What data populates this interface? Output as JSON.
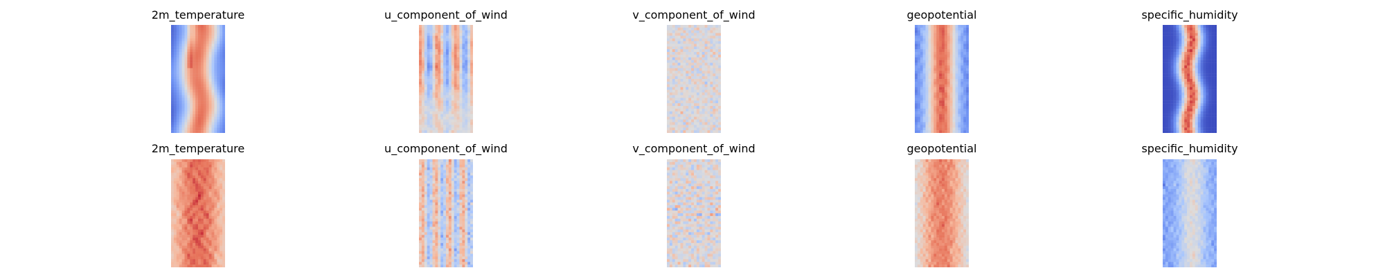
{
  "chart_data": {
    "type": "heatmap",
    "colormap": "coolwarm",
    "colormap_stops": [
      "#3b4cc0",
      "#6f92f3",
      "#aac7fd",
      "#dddcdc",
      "#f7b89c",
      "#e7745b",
      "#b40426"
    ],
    "grid": false,
    "axes_visible": false,
    "layout": {
      "rows": 2,
      "columns": 5
    },
    "panels": [
      {
        "row": 0,
        "col": 0,
        "title": "2m_temperature",
        "pattern": "temperature",
        "seed": 11
      },
      {
        "row": 0,
        "col": 1,
        "title": "u_component_of_wind",
        "pattern": "u_wind",
        "seed": 23
      },
      {
        "row": 0,
        "col": 2,
        "title": "v_component_of_wind",
        "pattern": "v_wind",
        "seed": 37
      },
      {
        "row": 0,
        "col": 3,
        "title": "geopotential",
        "pattern": "geopotential",
        "seed": 41
      },
      {
        "row": 0,
        "col": 4,
        "title": "specific_humidity",
        "pattern": "humidity",
        "seed": 53
      },
      {
        "row": 1,
        "col": 0,
        "title": "2m_temperature",
        "pattern": "temperature_noisy",
        "seed": 61
      },
      {
        "row": 1,
        "col": 1,
        "title": "u_component_of_wind",
        "pattern": "u_wind_noisy",
        "seed": 73
      },
      {
        "row": 1,
        "col": 2,
        "title": "v_component_of_wind",
        "pattern": "v_wind_noisy",
        "seed": 89
      },
      {
        "row": 1,
        "col": 3,
        "title": "geopotential",
        "pattern": "geopotential_noisy",
        "seed": 97
      },
      {
        "row": 1,
        "col": 4,
        "title": "specific_humidity",
        "pattern": "humidity_noisy",
        "seed": 101
      }
    ]
  }
}
